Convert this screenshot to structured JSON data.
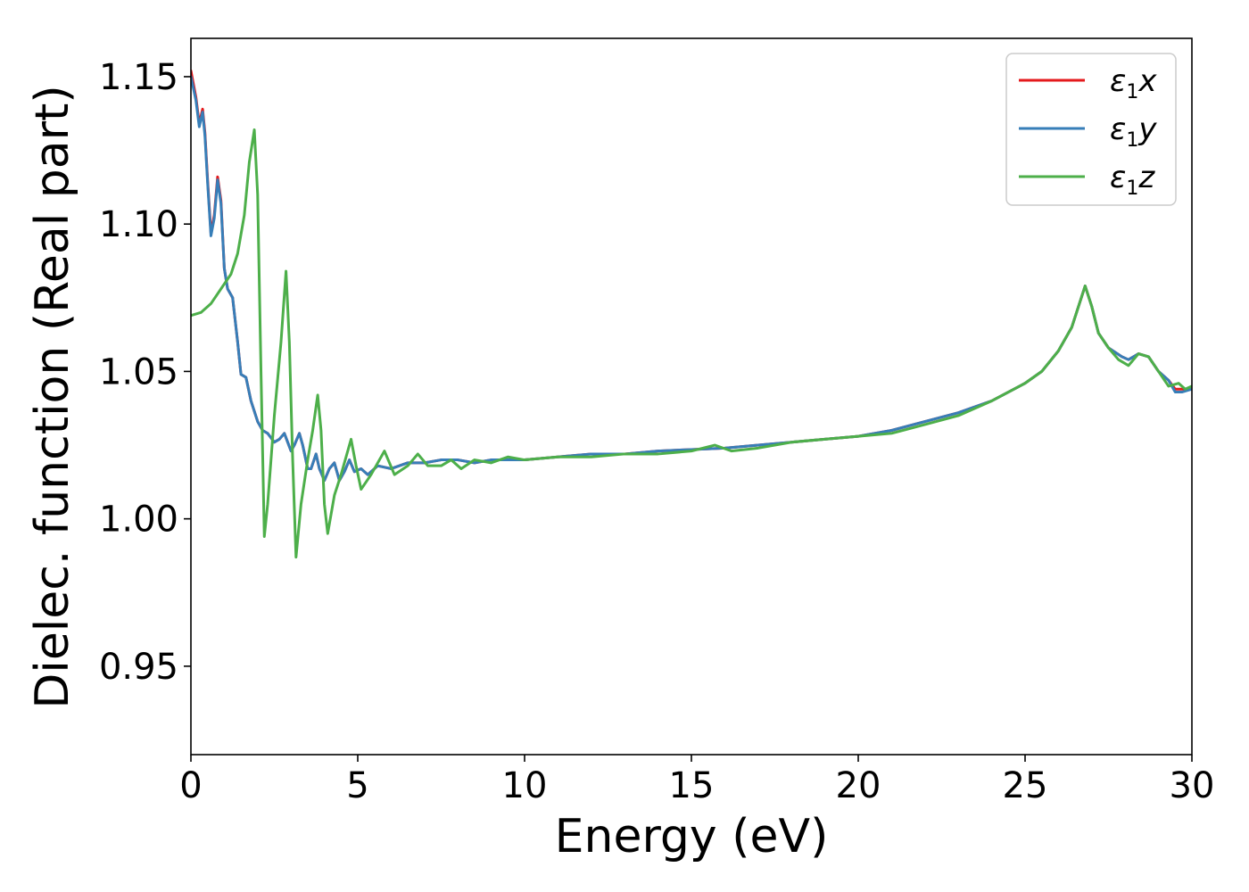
{
  "chart_data": {
    "type": "line",
    "xlabel": "Energy (eV)",
    "ylabel": "Dielec. function (Real part)",
    "xlim": [
      0,
      30
    ],
    "ylim": [
      0.92,
      1.163
    ],
    "x_ticks": [
      0,
      5,
      10,
      15,
      20,
      25,
      30
    ],
    "x_tick_labels": [
      "0",
      "5",
      "10",
      "15",
      "20",
      "25",
      "30"
    ],
    "y_ticks": [
      0.95,
      1.0,
      1.05,
      1.1,
      1.15
    ],
    "y_tick_labels": [
      "0.95",
      "1.00",
      "1.05",
      "1.10",
      "1.15"
    ],
    "grid": false,
    "legend_position": "top-right",
    "series": [
      {
        "name": "ε₁x",
        "legend_symbol": "ε",
        "legend_sub": "1",
        "legend_var": "x",
        "color": "#e41a1c",
        "points": [
          [
            0,
            1.152
          ],
          [
            0.15,
            1.143
          ],
          [
            0.25,
            1.134
          ],
          [
            0.35,
            1.139
          ],
          [
            0.42,
            1.131
          ],
          [
            0.5,
            1.115
          ],
          [
            0.6,
            1.097
          ],
          [
            0.7,
            1.103
          ],
          [
            0.8,
            1.116
          ],
          [
            0.9,
            1.108
          ],
          [
            1.0,
            1.085
          ],
          [
            1.1,
            1.078
          ],
          [
            1.25,
            1.075
          ],
          [
            1.4,
            1.06
          ],
          [
            1.5,
            1.049
          ],
          [
            1.65,
            1.048
          ],
          [
            1.8,
            1.04
          ],
          [
            2.0,
            1.033
          ],
          [
            2.15,
            1.03
          ],
          [
            2.3,
            1.029
          ],
          [
            2.5,
            1.026
          ],
          [
            2.65,
            1.027
          ],
          [
            2.8,
            1.029
          ],
          [
            3.0,
            1.023
          ],
          [
            3.1,
            1.025
          ],
          [
            3.25,
            1.029
          ],
          [
            3.35,
            1.025
          ],
          [
            3.5,
            1.017
          ],
          [
            3.6,
            1.017
          ],
          [
            3.75,
            1.022
          ],
          [
            3.85,
            1.017
          ],
          [
            4.0,
            1.013
          ],
          [
            4.15,
            1.017
          ],
          [
            4.3,
            1.019
          ],
          [
            4.45,
            1.013
          ],
          [
            4.6,
            1.016
          ],
          [
            4.75,
            1.02
          ],
          [
            4.9,
            1.016
          ],
          [
            5.1,
            1.017
          ],
          [
            5.3,
            1.015
          ],
          [
            5.6,
            1.018
          ],
          [
            6.0,
            1.017
          ],
          [
            6.5,
            1.019
          ],
          [
            7.0,
            1.019
          ],
          [
            7.5,
            1.02
          ],
          [
            8.0,
            1.02
          ],
          [
            8.5,
            1.019
          ],
          [
            9.0,
            1.02
          ],
          [
            9.5,
            1.02
          ],
          [
            10,
            1.02
          ],
          [
            11,
            1.021
          ],
          [
            12,
            1.022
          ],
          [
            13,
            1.022
          ],
          [
            14,
            1.023
          ],
          [
            15,
            1.0235
          ],
          [
            16,
            1.024
          ],
          [
            17,
            1.025
          ],
          [
            18,
            1.026
          ],
          [
            19,
            1.027
          ],
          [
            20,
            1.028
          ],
          [
            21,
            1.03
          ],
          [
            22,
            1.033
          ],
          [
            23,
            1.036
          ],
          [
            24,
            1.04
          ],
          [
            25,
            1.046
          ],
          [
            25.5,
            1.05
          ],
          [
            26,
            1.057
          ],
          [
            26.4,
            1.065
          ],
          [
            26.6,
            1.072
          ],
          [
            26.8,
            1.079
          ],
          [
            27.0,
            1.072
          ],
          [
            27.2,
            1.063
          ],
          [
            27.5,
            1.058
          ],
          [
            27.9,
            1.055
          ],
          [
            28.1,
            1.054
          ],
          [
            28.4,
            1.056
          ],
          [
            28.7,
            1.055
          ],
          [
            29.0,
            1.05
          ],
          [
            29.3,
            1.047
          ],
          [
            29.5,
            1.044
          ],
          [
            29.7,
            1.044
          ],
          [
            30,
            1.044
          ]
        ]
      },
      {
        "name": "ε₁y",
        "legend_symbol": "ε",
        "legend_sub": "1",
        "legend_var": "y",
        "color": "#377eb8",
        "points": [
          [
            0,
            1.15
          ],
          [
            0.15,
            1.142
          ],
          [
            0.25,
            1.133
          ],
          [
            0.35,
            1.138
          ],
          [
            0.42,
            1.13
          ],
          [
            0.5,
            1.114
          ],
          [
            0.6,
            1.096
          ],
          [
            0.7,
            1.102
          ],
          [
            0.8,
            1.115
          ],
          [
            0.9,
            1.107
          ],
          [
            1.0,
            1.085
          ],
          [
            1.1,
            1.078
          ],
          [
            1.25,
            1.075
          ],
          [
            1.4,
            1.06
          ],
          [
            1.5,
            1.049
          ],
          [
            1.65,
            1.048
          ],
          [
            1.8,
            1.04
          ],
          [
            2.0,
            1.033
          ],
          [
            2.15,
            1.03
          ],
          [
            2.3,
            1.029
          ],
          [
            2.5,
            1.026
          ],
          [
            2.65,
            1.027
          ],
          [
            2.8,
            1.029
          ],
          [
            3.0,
            1.023
          ],
          [
            3.1,
            1.025
          ],
          [
            3.25,
            1.029
          ],
          [
            3.35,
            1.025
          ],
          [
            3.5,
            1.017
          ],
          [
            3.6,
            1.017
          ],
          [
            3.75,
            1.022
          ],
          [
            3.85,
            1.017
          ],
          [
            4.0,
            1.013
          ],
          [
            4.15,
            1.017
          ],
          [
            4.3,
            1.019
          ],
          [
            4.45,
            1.013
          ],
          [
            4.6,
            1.016
          ],
          [
            4.75,
            1.02
          ],
          [
            4.9,
            1.016
          ],
          [
            5.1,
            1.017
          ],
          [
            5.3,
            1.015
          ],
          [
            5.6,
            1.018
          ],
          [
            6.0,
            1.017
          ],
          [
            6.5,
            1.019
          ],
          [
            7.0,
            1.019
          ],
          [
            7.5,
            1.02
          ],
          [
            8.0,
            1.02
          ],
          [
            8.5,
            1.019
          ],
          [
            9.0,
            1.02
          ],
          [
            9.5,
            1.02
          ],
          [
            10,
            1.02
          ],
          [
            11,
            1.021
          ],
          [
            12,
            1.022
          ],
          [
            13,
            1.022
          ],
          [
            14,
            1.023
          ],
          [
            15,
            1.0235
          ],
          [
            16,
            1.024
          ],
          [
            17,
            1.025
          ],
          [
            18,
            1.026
          ],
          [
            19,
            1.027
          ],
          [
            20,
            1.028
          ],
          [
            21,
            1.03
          ],
          [
            22,
            1.033
          ],
          [
            23,
            1.036
          ],
          [
            24,
            1.04
          ],
          [
            25,
            1.046
          ],
          [
            25.5,
            1.05
          ],
          [
            26,
            1.057
          ],
          [
            26.4,
            1.065
          ],
          [
            26.6,
            1.072
          ],
          [
            26.8,
            1.079
          ],
          [
            27.0,
            1.072
          ],
          [
            27.2,
            1.063
          ],
          [
            27.5,
            1.058
          ],
          [
            27.9,
            1.055
          ],
          [
            28.1,
            1.054
          ],
          [
            28.4,
            1.056
          ],
          [
            28.7,
            1.055
          ],
          [
            29.0,
            1.05
          ],
          [
            29.3,
            1.047
          ],
          [
            29.5,
            1.043
          ],
          [
            29.7,
            1.043
          ],
          [
            30,
            1.044
          ]
        ]
      },
      {
        "name": "ε₁z",
        "legend_symbol": "ε",
        "legend_sub": "1",
        "legend_var": "z",
        "color": "#4daf4a",
        "points": [
          [
            0,
            1.069
          ],
          [
            0.3,
            1.07
          ],
          [
            0.6,
            1.073
          ],
          [
            0.9,
            1.078
          ],
          [
            1.2,
            1.083
          ],
          [
            1.4,
            1.09
          ],
          [
            1.6,
            1.103
          ],
          [
            1.75,
            1.121
          ],
          [
            1.9,
            1.132
          ],
          [
            2.0,
            1.11
          ],
          [
            2.1,
            1.05
          ],
          [
            2.2,
            0.994
          ],
          [
            2.3,
            1.005
          ],
          [
            2.5,
            1.035
          ],
          [
            2.7,
            1.06
          ],
          [
            2.85,
            1.084
          ],
          [
            2.95,
            1.06
          ],
          [
            3.05,
            1.02
          ],
          [
            3.15,
            0.987
          ],
          [
            3.3,
            1.005
          ],
          [
            3.5,
            1.02
          ],
          [
            3.65,
            1.03
          ],
          [
            3.8,
            1.042
          ],
          [
            3.9,
            1.03
          ],
          [
            4.0,
            1.005
          ],
          [
            4.1,
            0.995
          ],
          [
            4.3,
            1.008
          ],
          [
            4.5,
            1.015
          ],
          [
            4.8,
            1.027
          ],
          [
            4.95,
            1.018
          ],
          [
            5.1,
            1.01
          ],
          [
            5.4,
            1.015
          ],
          [
            5.8,
            1.023
          ],
          [
            6.1,
            1.015
          ],
          [
            6.5,
            1.018
          ],
          [
            6.8,
            1.022
          ],
          [
            7.1,
            1.018
          ],
          [
            7.5,
            1.018
          ],
          [
            7.8,
            1.02
          ],
          [
            8.1,
            1.017
          ],
          [
            8.5,
            1.02
          ],
          [
            9.0,
            1.019
          ],
          [
            9.5,
            1.021
          ],
          [
            10,
            1.02
          ],
          [
            11,
            1.021
          ],
          [
            12,
            1.021
          ],
          [
            13,
            1.022
          ],
          [
            14,
            1.022
          ],
          [
            15,
            1.023
          ],
          [
            15.7,
            1.025
          ],
          [
            16.2,
            1.023
          ],
          [
            17,
            1.024
          ],
          [
            18,
            1.026
          ],
          [
            19,
            1.027
          ],
          [
            20,
            1.028
          ],
          [
            21,
            1.029
          ],
          [
            22,
            1.032
          ],
          [
            23,
            1.035
          ],
          [
            24,
            1.04
          ],
          [
            25,
            1.046
          ],
          [
            25.5,
            1.05
          ],
          [
            26,
            1.057
          ],
          [
            26.4,
            1.065
          ],
          [
            26.6,
            1.072
          ],
          [
            26.8,
            1.079
          ],
          [
            27.0,
            1.072
          ],
          [
            27.2,
            1.063
          ],
          [
            27.5,
            1.058
          ],
          [
            27.8,
            1.054
          ],
          [
            28.1,
            1.052
          ],
          [
            28.4,
            1.056
          ],
          [
            28.7,
            1.055
          ],
          [
            29.0,
            1.05
          ],
          [
            29.3,
            1.045
          ],
          [
            29.6,
            1.046
          ],
          [
            29.8,
            1.044
          ],
          [
            30,
            1.045
          ]
        ]
      }
    ]
  }
}
